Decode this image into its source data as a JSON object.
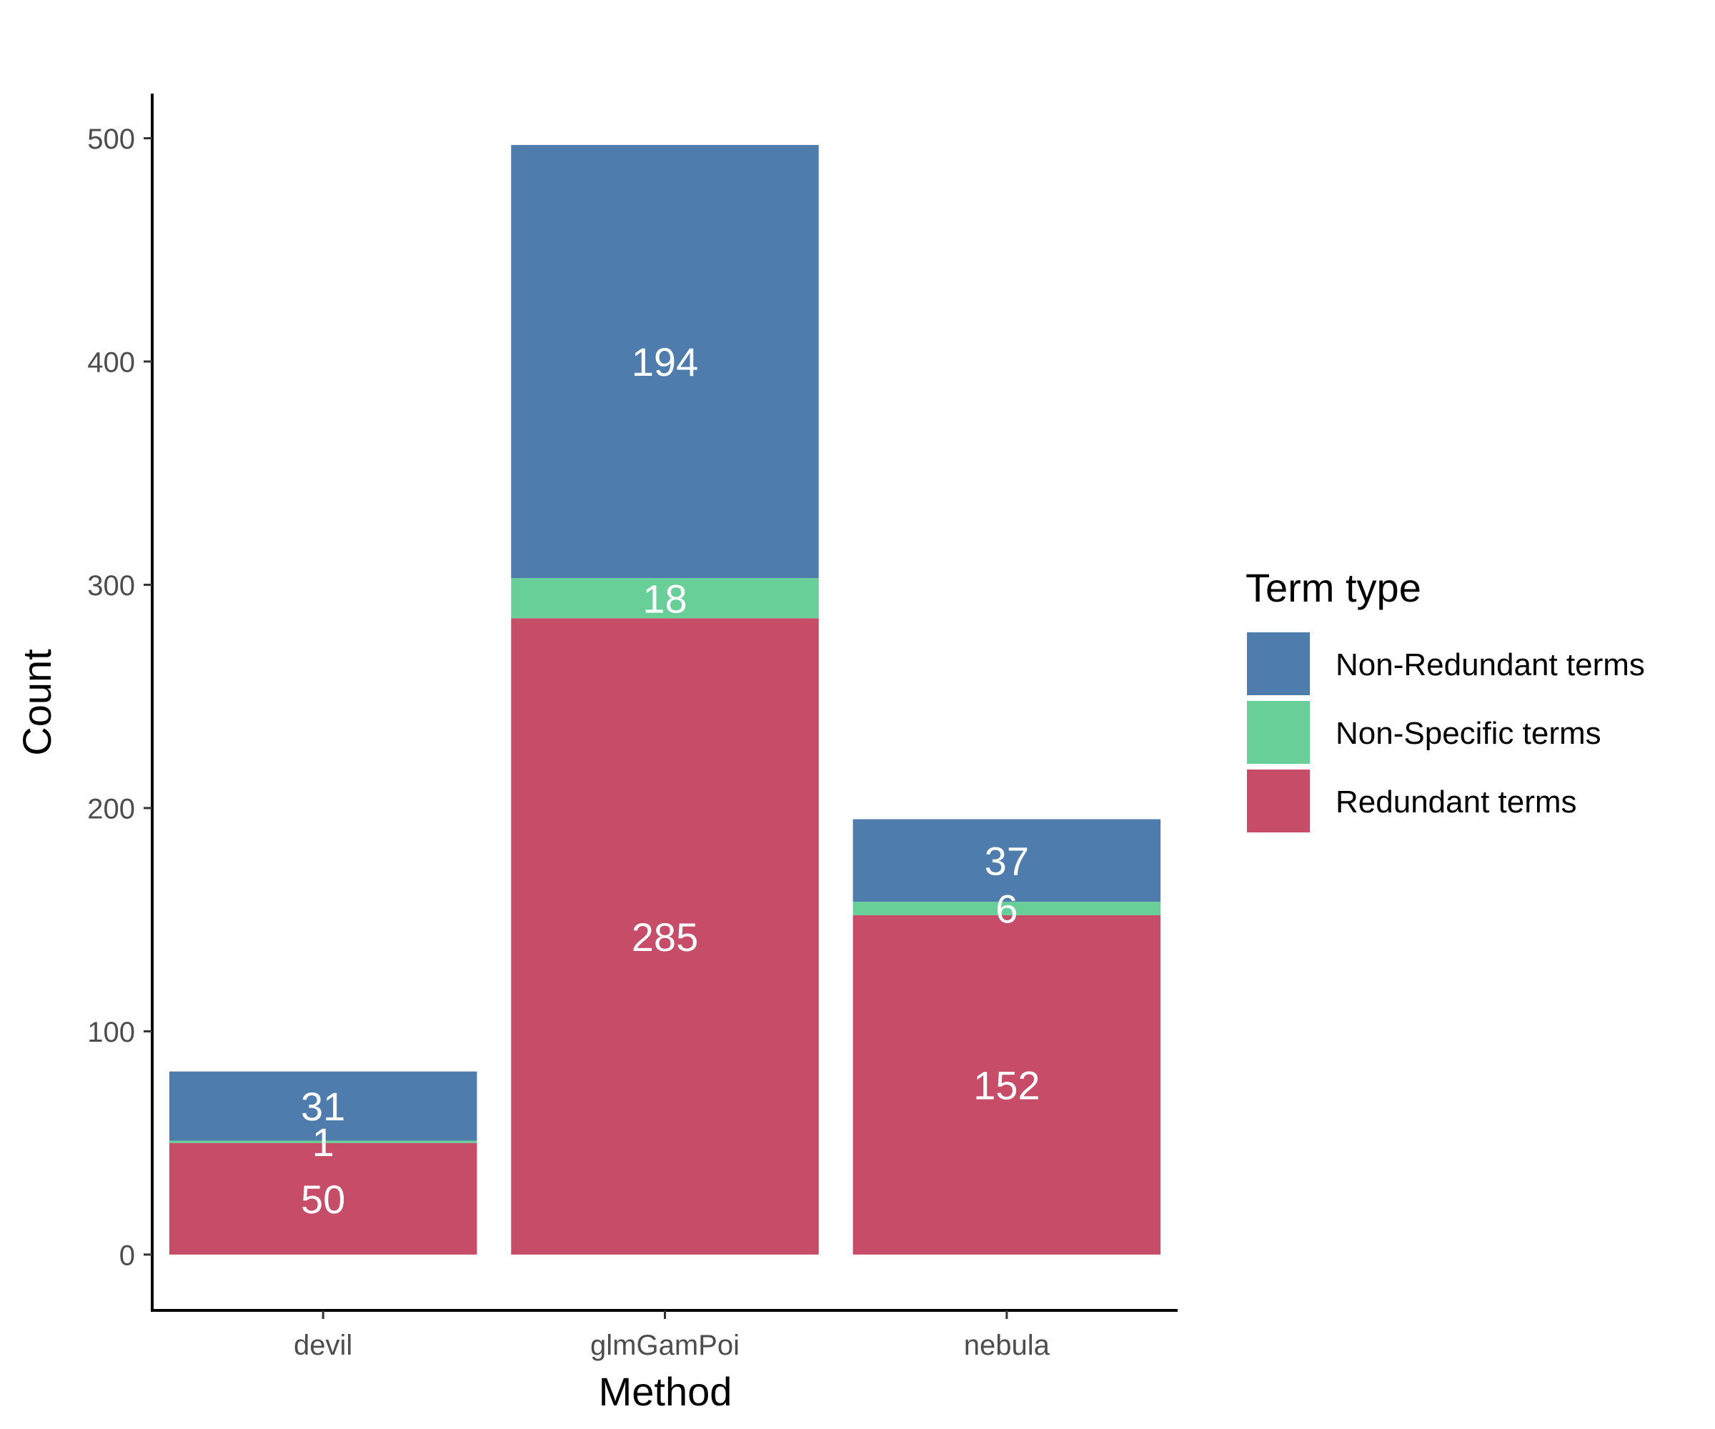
{
  "chart_data": {
    "type": "bar",
    "stacked": true,
    "xlabel": "Method",
    "ylabel": "Count",
    "categories": [
      "devil",
      "glmGamPoi",
      "nebula"
    ],
    "series": [
      {
        "name": "Redundant terms",
        "color": "#c64c68",
        "values": [
          50,
          285,
          152
        ]
      },
      {
        "name": "Non-Specific terms",
        "color": "#69cf99",
        "values": [
          1,
          18,
          6
        ]
      },
      {
        "name": "Non-Redundant terms",
        "color": "#4e7dad",
        "values": [
          31,
          194,
          37
        ]
      }
    ],
    "ylim": [
      -25,
      520
    ],
    "yticks": [
      0,
      100,
      200,
      300,
      400,
      500
    ],
    "legend": {
      "title": "Term type",
      "position": "right",
      "entries": [
        "Non-Redundant terms",
        "Non-Specific terms",
        "Redundant terms"
      ]
    },
    "grid": false
  }
}
